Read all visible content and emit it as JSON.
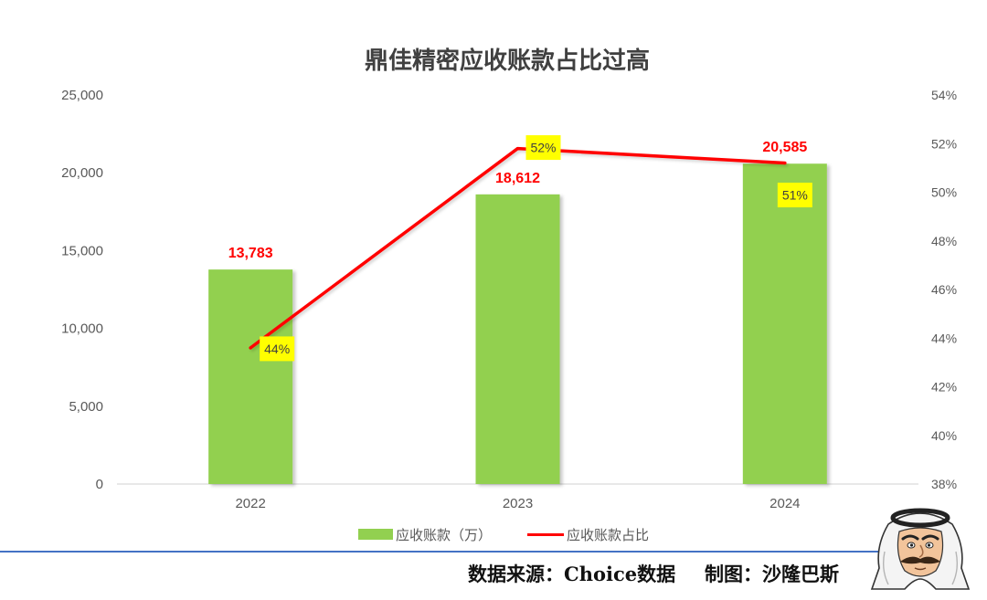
{
  "chart_data": {
    "type": "bar",
    "title": "鼎佳精密应收账款占比过高",
    "categories": [
      "2022",
      "2023",
      "2024"
    ],
    "series": [
      {
        "name": "应收账款（万）",
        "type": "bar",
        "axis": "left",
        "values": [
          13783,
          18612,
          20585
        ],
        "labels": [
          "13,783",
          "18,612",
          "20,585"
        ],
        "color": "#92d050",
        "label_color": "#ff0000"
      },
      {
        "name": "应收账款占比",
        "type": "line",
        "axis": "right",
        "values": [
          43.6,
          51.8,
          51.2
        ],
        "labels": [
          "44%",
          "52%",
          "51%"
        ],
        "color": "#ff0000",
        "label_background": "#ffff00"
      }
    ],
    "y_left": {
      "ylim": [
        0,
        25000
      ],
      "ticks": [
        0,
        5000,
        10000,
        15000,
        20000,
        25000
      ],
      "tick_labels": [
        "0",
        "5,000",
        "10,000",
        "15,000",
        "20,000",
        "25,000"
      ]
    },
    "y_right": {
      "ylim": [
        38,
        54
      ],
      "ticks": [
        38,
        40,
        42,
        44,
        46,
        48,
        50,
        52,
        54
      ],
      "tick_labels": [
        "38%",
        "40%",
        "42%",
        "44%",
        "46%",
        "48%",
        "50%",
        "52%",
        "54%"
      ]
    },
    "grid": false,
    "legend": "bottom"
  },
  "footer": {
    "source": "数据来源：Choice数据",
    "author": "制图：沙隆巴斯",
    "rule_color": "#4472c4"
  },
  "mascot": {
    "icon": "cartoon-man-keffiyeh-icon"
  }
}
